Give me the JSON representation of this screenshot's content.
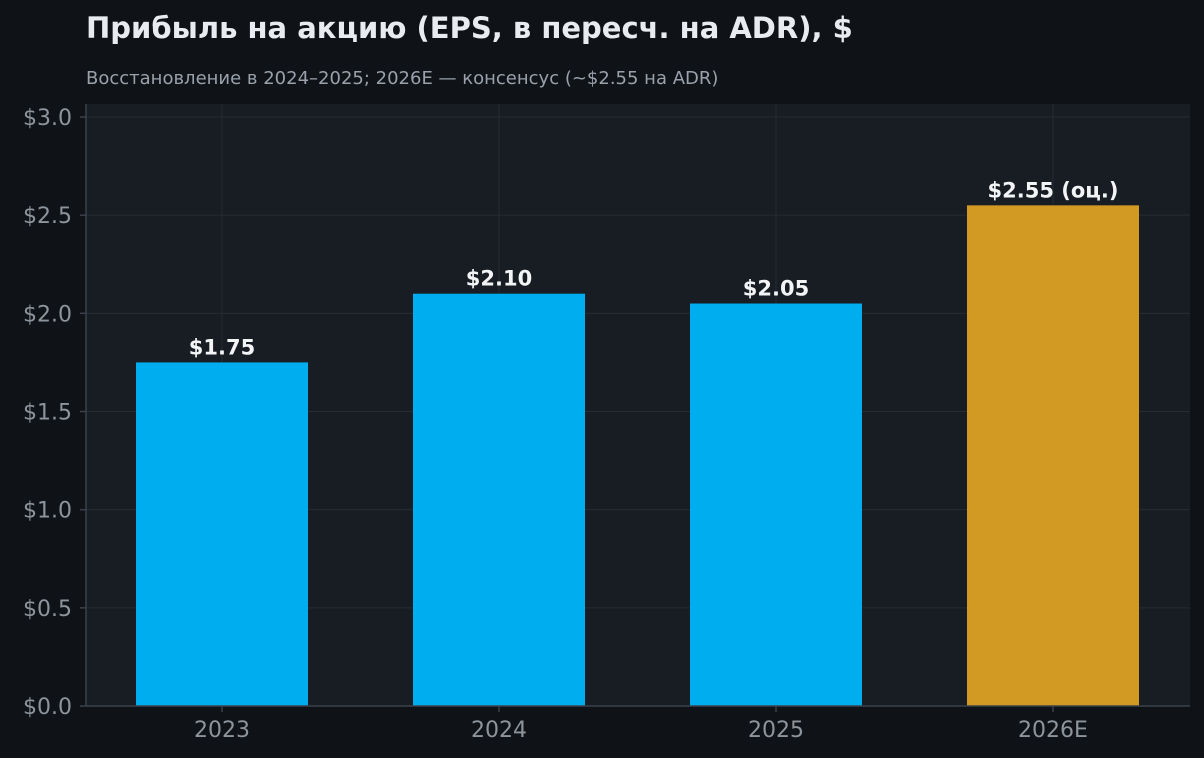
{
  "chart_data": {
    "type": "bar",
    "title": "Прибыль на акцию (EPS, в пересч. на ADR), $",
    "subtitle": "Восстановление в 2024–2025; 2026E — консенсус (~$2.55 на ADR)",
    "xlabel": "",
    "ylabel": "",
    "categories": [
      "2023",
      "2024",
      "2025",
      "2026E"
    ],
    "values": [
      1.75,
      2.1,
      2.05,
      2.55
    ],
    "data_labels": [
      "$1.75",
      "$2.10",
      "$2.05",
      "$2.55 (оц.)"
    ],
    "bar_colors": [
      "#00aeef",
      "#00aeef",
      "#00aeef",
      "#d39a23"
    ],
    "ylim": [
      0,
      3.0
    ],
    "y_ticks": [
      0,
      0.5,
      1.0,
      1.5,
      2.0,
      2.5,
      3.0
    ],
    "y_tick_labels": [
      "$0.0",
      "$0.5",
      "$1.0",
      "$1.5",
      "$2.0",
      "$2.5",
      "$3.0"
    ],
    "grid": true,
    "colors": {
      "page_background": "#0f1318",
      "plot_background": "#181c23",
      "actual_bar": "#00aeef",
      "estimate_bar": "#d39a23"
    }
  }
}
